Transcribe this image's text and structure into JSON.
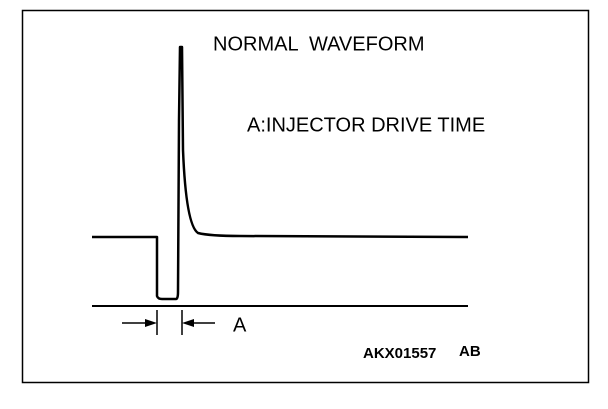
{
  "title": "NORMAL  WAVEFORM",
  "legend": "A:INJECTOR DRIVE TIME",
  "dimension_label": "A",
  "figure_code": "AKX01557",
  "figure_suffix": "AB"
}
